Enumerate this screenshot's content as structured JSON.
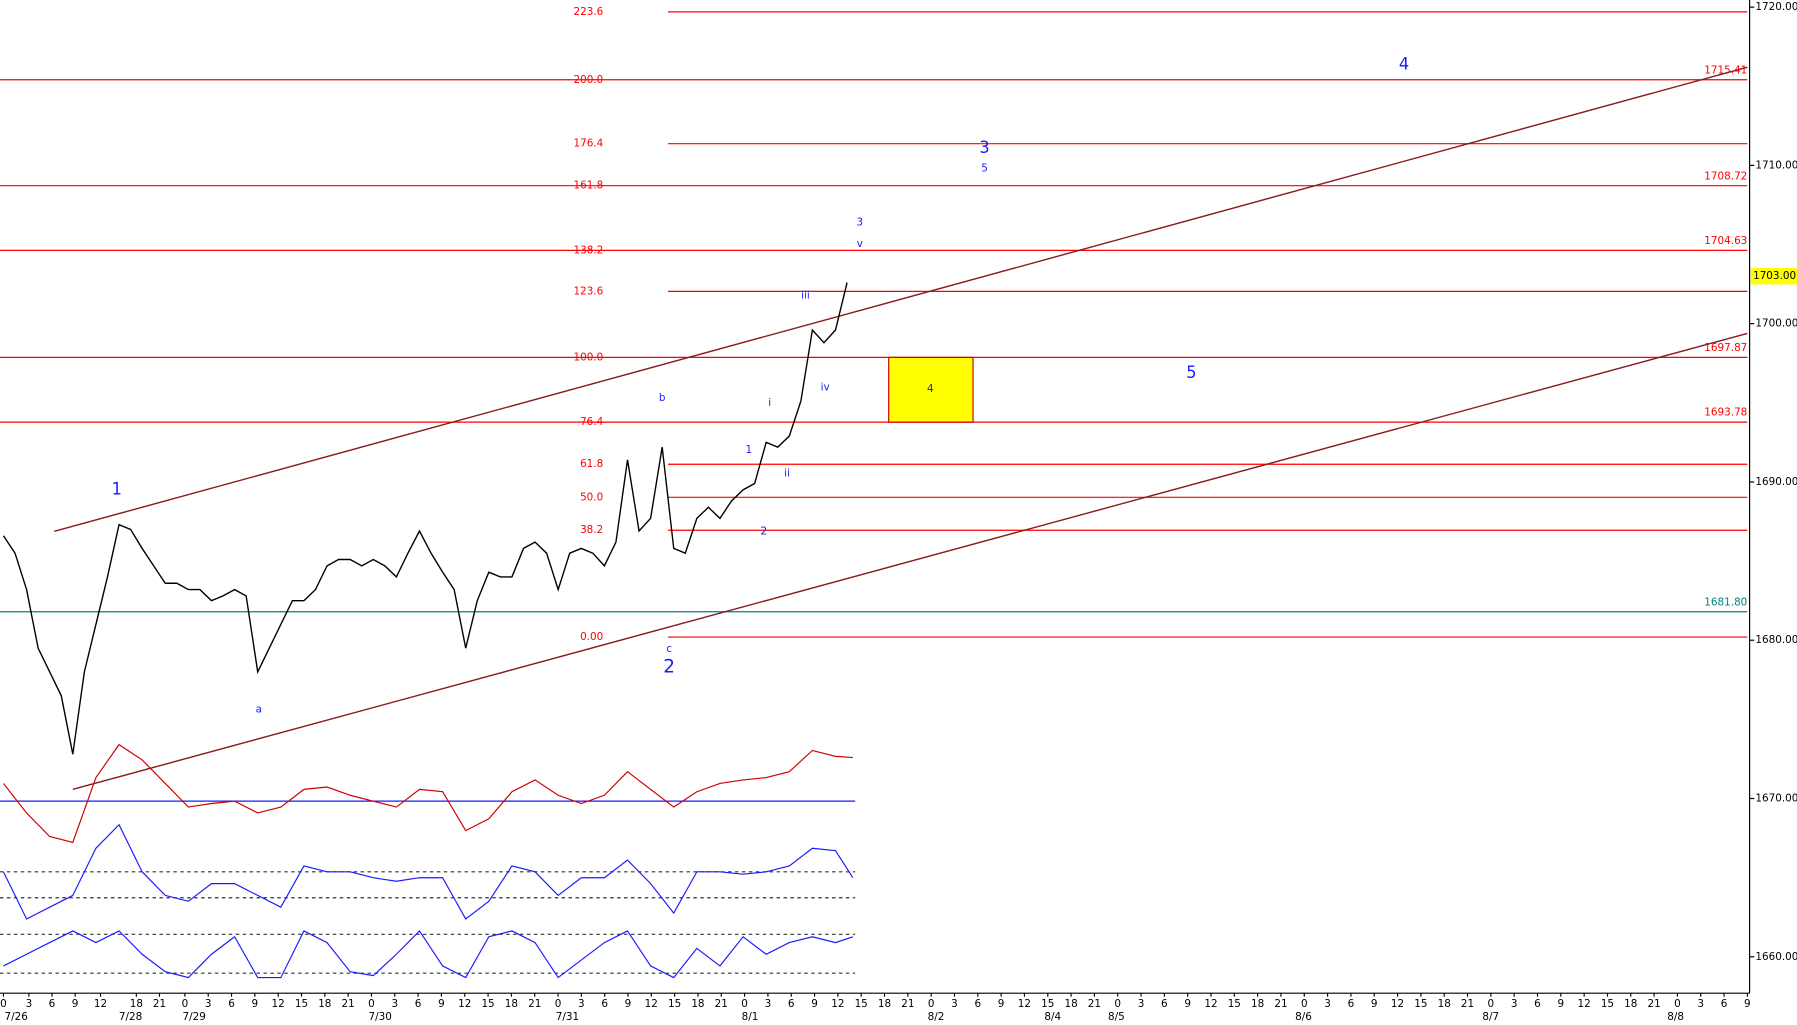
{
  "chart_data": {
    "type": "line",
    "ylim": [
      1657.7,
      1720.45
    ],
    "yticks": [
      {
        "value": 1660,
        "label": "1660.00"
      },
      {
        "value": 1670,
        "label": "1670.00"
      },
      {
        "value": 1680,
        "label": "1680.00"
      },
      {
        "value": 1690,
        "label": "1690.00"
      },
      {
        "value": 1700,
        "label": "1700.00"
      },
      {
        "value": 1710,
        "label": "1710.00"
      },
      {
        "value": 1720,
        "label": "1720.00"
      }
    ],
    "hour_labels": [
      "0",
      "3",
      "6",
      "9",
      "12",
      "18",
      "21",
      "0",
      "3",
      "6",
      "9",
      "12",
      "15",
      "18",
      "21",
      "0",
      "3",
      "6",
      "9",
      "12",
      "15",
      "18",
      "21",
      "0",
      "3",
      "6",
      "9",
      "12",
      "15",
      "18",
      "21",
      "0",
      "3",
      "6",
      "9",
      "12",
      "15",
      "18",
      "21",
      "0",
      "3",
      "6",
      "9",
      "12",
      "15",
      "18",
      "21",
      "0",
      "3",
      "6",
      "9",
      "12",
      "15",
      "18",
      "21",
      "0",
      "3",
      "6",
      "9",
      "12",
      "15",
      "18",
      "21",
      "0",
      "3",
      "6",
      "9",
      "12",
      "15",
      "18",
      "21",
      "0",
      "3",
      "6",
      "9"
    ],
    "date_labels": [
      "7/26",
      "7/28",
      "7/29",
      "7/30",
      "7/31",
      "8/1",
      "8/2",
      "8/4",
      "8/5",
      "8/6",
      "8/7",
      "8/8"
    ],
    "series": [
      {
        "color": "#000000",
        "values": [
          1686.6,
          1685.5,
          1683.2,
          1679.5,
          1678,
          1676.5,
          1672.8,
          1678,
          1681,
          1684,
          1687.3,
          1687,
          1685.8,
          1684.7,
          1683.6,
          1683.6,
          1683.2,
          1683.2,
          1682.5,
          1682.8,
          1683.2,
          1682.8,
          1678,
          1679.5,
          1681,
          1682.5,
          1682.5,
          1683.2,
          1684.7,
          1685.1,
          1685.1,
          1684.7,
          1685.1,
          1684.7,
          1684,
          1685.5,
          1686.9,
          1685.5,
          1684.3,
          1683.2,
          1679.5,
          1682.5,
          1684.3,
          1684,
          1684,
          1685.8,
          1686.2,
          1685.5,
          1683.2,
          1685.5,
          1685.8,
          1685.5,
          1684.7,
          1686.2,
          1691.4,
          1686.9,
          1687.7,
          1692.2,
          1685.8,
          1685.5,
          1687.7,
          1688.4,
          1687.7,
          1688.8,
          1689.5,
          1689.9,
          1692.5,
          1692.2,
          1692.9,
          1695.1,
          1699.6,
          1698.8,
          1699.6,
          1702.6
        ]
      }
    ],
    "level_color": "#ff0000",
    "extended_levels": [
      {
        "label": "200.0",
        "value": 1715.41
      },
      {
        "label": "161.8",
        "value": 1708.72
      },
      {
        "label": "138.2",
        "value": 1704.63
      },
      {
        "label": "100.0",
        "value": 1697.87
      },
      {
        "label": "76.4",
        "value": 1693.78
      }
    ],
    "levels": [
      {
        "label": "223.6",
        "value": 1719.7
      },
      {
        "label": "176.4",
        "value": 1711.37
      },
      {
        "label": "123.6",
        "value": 1702.04
      },
      {
        "label": "61.8",
        "value": 1691.12
      },
      {
        "label": "50.0",
        "value": 1689.03
      },
      {
        "label": "38.2",
        "value": 1686.95
      },
      {
        "label": "0.00",
        "value": 1680.2
      }
    ],
    "support": {
      "value": 1681.8,
      "label": "1681.80",
      "color": "#008080"
    },
    "last_price": {
      "value": 1703,
      "label": "1703.00",
      "color": "#ffff00"
    },
    "wave_color": "#1a1aff",
    "wave_labels": [
      "1",
      "2",
      "3",
      "4",
      "5",
      "a",
      "b",
      "c",
      "i",
      "ii",
      "iii",
      "iv",
      "v",
      "1",
      "2",
      "3",
      "5",
      "4"
    ],
    "indicators": [
      {
        "color": "#cc0000",
        "values": [
          0.3,
          -0.2,
          -0.6,
          -0.7,
          0.4,
          0.96,
          0.7,
          0.3,
          -0.1,
          -0.04,
          0,
          -0.2,
          -0.1,
          0.2,
          0.24,
          0.1,
          0,
          -0.1,
          0.2,
          0.16,
          -0.5,
          -0.3,
          0.16,
          0.36,
          0.1,
          -0.04,
          0.1,
          0.5,
          0.2,
          -0.1,
          0.16,
          0.3,
          0.36,
          0.4,
          0.5,
          0.86,
          0.76,
          0.74
        ]
      },
      {
        "color": "#1a1aff",
        "values": [
          60,
          20,
          30,
          40,
          80,
          100,
          60,
          40,
          35,
          50,
          50,
          40,
          30,
          65,
          60,
          60,
          55,
          52,
          55,
          55,
          20,
          35,
          65,
          60,
          40,
          55,
          55,
          70,
          50,
          25,
          60,
          60,
          58,
          60,
          65,
          80,
          78,
          55
        ]
      },
      {
        "color": "#1a1aff",
        "values": [
          33,
          51,
          69,
          87,
          69,
          87,
          51,
          24,
          15,
          51,
          78,
          15,
          15,
          87,
          69,
          24,
          18,
          51,
          87,
          33,
          15,
          78,
          87,
          69,
          15,
          42,
          69,
          87,
          33,
          15,
          60,
          33,
          78,
          51,
          69,
          78,
          69,
          78
        ]
      }
    ]
  }
}
